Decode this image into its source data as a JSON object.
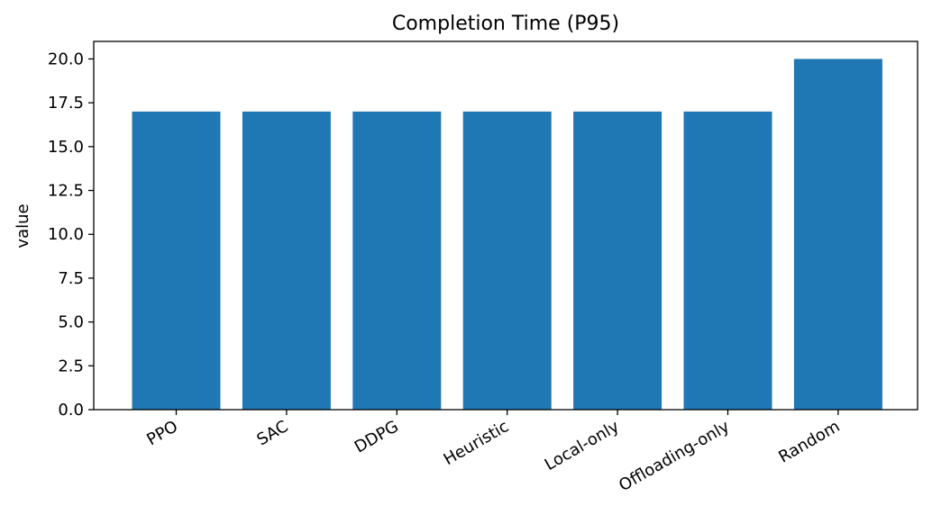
{
  "chart_data": {
    "type": "bar",
    "title": "Completion Time (P95)",
    "xlabel": "",
    "ylabel": "value",
    "categories": [
      "PPO",
      "SAC",
      "DDPG",
      "Heuristic",
      "Local-only",
      "Offloading-only",
      "Random"
    ],
    "values": [
      17,
      17,
      17,
      17,
      17,
      17,
      20
    ],
    "ylim": [
      0,
      21
    ],
    "yticks": [
      "0.0",
      "2.5",
      "5.0",
      "7.5",
      "10.0",
      "12.5",
      "15.0",
      "17.5",
      "20.0"
    ],
    "ytick_values": [
      0,
      2.5,
      5,
      7.5,
      10,
      12.5,
      15,
      17.5,
      20
    ],
    "bar_color": "#1f77b4",
    "grid": false,
    "legend": "none"
  }
}
